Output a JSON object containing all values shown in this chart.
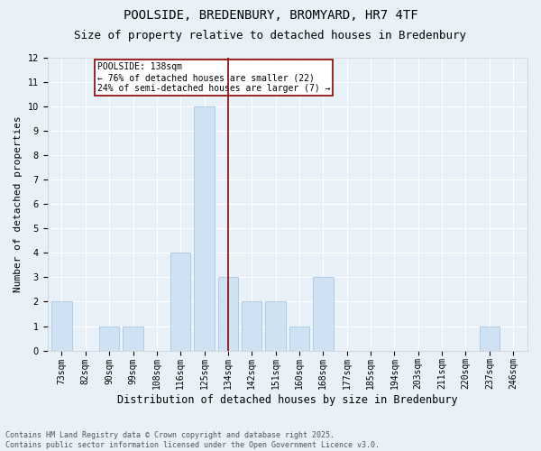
{
  "title": "POOLSIDE, BREDENBURY, BROMYARD, HR7 4TF",
  "subtitle": "Size of property relative to detached houses in Bredenbury",
  "xlabel": "Distribution of detached houses by size in Bredenbury",
  "ylabel": "Number of detached properties",
  "categories": [
    "73sqm",
    "82sqm",
    "90sqm",
    "99sqm",
    "108sqm",
    "116sqm",
    "125sqm",
    "134sqm",
    "142sqm",
    "151sqm",
    "160sqm",
    "168sqm",
    "177sqm",
    "185sqm",
    "194sqm",
    "203sqm",
    "211sqm",
    "220sqm",
    "237sqm",
    "246sqm"
  ],
  "values": [
    2,
    0,
    1,
    1,
    0,
    4,
    10,
    3,
    2,
    2,
    1,
    3,
    0,
    0,
    0,
    0,
    0,
    0,
    1,
    0
  ],
  "bar_color": "#cfe2f3",
  "bar_edge_color": "#a8c8e0",
  "vline_color": "#8b0000",
  "annotation_text": "POOLSIDE: 138sqm\n← 76% of detached houses are smaller (22)\n24% of semi-detached houses are larger (7) →",
  "annotation_box_color": "#ffffff",
  "annotation_box_edge_color": "#8b0000",
  "ylim": [
    0,
    12
  ],
  "yticks": [
    0,
    1,
    2,
    3,
    4,
    5,
    6,
    7,
    8,
    9,
    10,
    11,
    12
  ],
  "background_color": "#e8f0f8",
  "footer_text": "Contains HM Land Registry data © Crown copyright and database right 2025.\nContains public sector information licensed under the Open Government Licence v3.0.",
  "title_fontsize": 10,
  "subtitle_fontsize": 9,
  "xlabel_fontsize": 8.5,
  "ylabel_fontsize": 8,
  "tick_fontsize": 7,
  "annotation_fontsize": 7,
  "footer_fontsize": 6
}
